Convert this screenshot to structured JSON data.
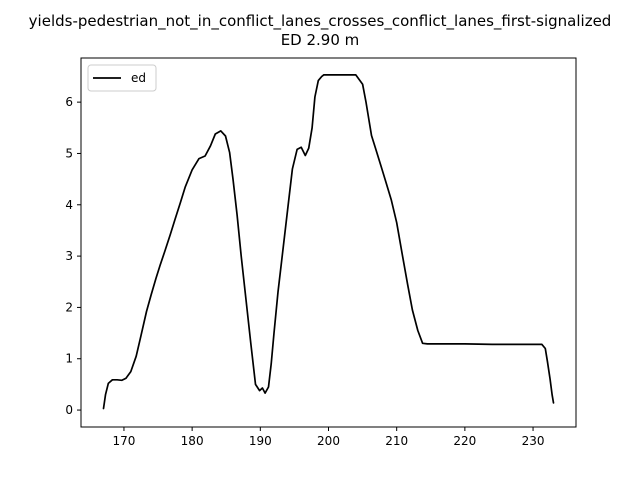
{
  "chart_data": {
    "type": "line",
    "title_line1": "yields-pedestrian_not_in_conflict_lanes_crosses_conflict_lanes_first-signalized",
    "title_line2": "ED 2.90 m",
    "xlabel": "",
    "ylabel": "",
    "xlim": [
      163.7,
      236.3
    ],
    "ylim": [
      -0.33,
      6.86
    ],
    "xticks": [
      170,
      180,
      190,
      200,
      210,
      220,
      230
    ],
    "yticks": [
      0,
      1,
      2,
      3,
      4,
      5,
      6
    ],
    "grid": false,
    "legend": {
      "position": "upper-left",
      "entries": [
        "ed"
      ]
    },
    "series": [
      {
        "name": "ed",
        "color": "#000000",
        "x": [
          167.0,
          167.3,
          167.7,
          168.3,
          169.0,
          169.7,
          170.3,
          171.0,
          171.8,
          172.5,
          173.3,
          174.0,
          174.7,
          175.3,
          176.0,
          176.8,
          177.5,
          178.3,
          179.0,
          180.0,
          181.0,
          181.9,
          182.7,
          183.4,
          184.2,
          184.9,
          185.5,
          186.0,
          186.6,
          187.2,
          187.9,
          188.6,
          189.3,
          189.9,
          190.3,
          190.7,
          191.2,
          191.6,
          192.0,
          192.6,
          193.3,
          194.0,
          194.7,
          195.4,
          196.0,
          196.6,
          197.1,
          197.6,
          198.0,
          198.5,
          199.0,
          199.3,
          199.7,
          200.5,
          201.5,
          203.0,
          204.0,
          205.0,
          205.5,
          206.3,
          206.9,
          207.6,
          208.4,
          209.2,
          210.0,
          210.8,
          211.6,
          212.3,
          213.1,
          213.8,
          214.5,
          215.5,
          217.0,
          220.0,
          224.0,
          228.0,
          230.5,
          231.3,
          231.8,
          232.1,
          232.5,
          232.8,
          233.0
        ],
        "y": [
          0.03,
          0.3,
          0.52,
          0.59,
          0.59,
          0.58,
          0.62,
          0.75,
          1.05,
          1.45,
          1.92,
          2.25,
          2.57,
          2.82,
          3.1,
          3.42,
          3.72,
          4.05,
          4.35,
          4.68,
          4.9,
          4.95,
          5.15,
          5.38,
          5.44,
          5.34,
          5.02,
          4.5,
          3.8,
          3.0,
          2.15,
          1.3,
          0.5,
          0.38,
          0.43,
          0.33,
          0.45,
          0.9,
          1.5,
          2.3,
          3.1,
          3.9,
          4.7,
          5.08,
          5.12,
          4.96,
          5.1,
          5.5,
          6.1,
          6.42,
          6.5,
          6.53,
          6.53,
          6.53,
          6.53,
          6.53,
          6.53,
          6.35,
          6.0,
          5.35,
          5.1,
          4.8,
          4.45,
          4.1,
          3.65,
          3.05,
          2.45,
          1.95,
          1.55,
          1.3,
          1.29,
          1.29,
          1.29,
          1.29,
          1.28,
          1.28,
          1.28,
          1.28,
          1.2,
          0.95,
          0.6,
          0.3,
          0.14
        ]
      }
    ]
  }
}
